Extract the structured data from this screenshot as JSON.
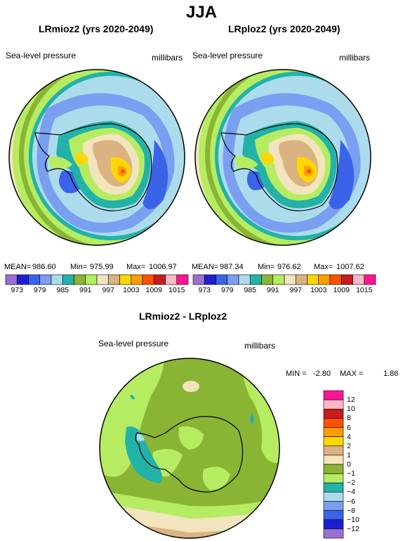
{
  "figure": {
    "title": "JJA",
    "colors": [
      "#9b6fd2",
      "#1f1fd2",
      "#3a63e8",
      "#7a9ef0",
      "#acdcec",
      "#22b2a8",
      "#8ab534",
      "#b6ec62",
      "#f2e4bc",
      "#dbb382",
      "#ffd700",
      "#ff9d00",
      "#ff5000",
      "#c61c1c",
      "#ffb6c6",
      "#ff1493"
    ]
  },
  "chart_data": [
    {
      "type": "heatmap",
      "title": "LRmioz2 (yrs 2020-2049)",
      "variable": "Sea-level pressure",
      "units": "millibars",
      "projection": "south polar stereographic (Antarctica)",
      "stats": {
        "mean_label": "MEAN=",
        "mean": "986.60",
        "min_label": "Min=",
        "min": "975.99",
        "max_label": "Max=",
        "max": "1006.97"
      },
      "colorbar_ticks": [
        "973",
        "979",
        "985",
        "991",
        "997",
        "1003",
        "1009",
        "1015"
      ]
    },
    {
      "type": "heatmap",
      "title": "LRploz2 (yrs 2020-2049)",
      "variable": "Sea-level pressure",
      "units": "millibars",
      "projection": "south polar stereographic (Antarctica)",
      "stats": {
        "mean_label": "MEAN=",
        "mean": "987.34",
        "min_label": "Min=",
        "min": "976.62",
        "max_label": "Max=",
        "max": "1007.62"
      },
      "colorbar_ticks": [
        "973",
        "979",
        "985",
        "991",
        "997",
        "1003",
        "1009",
        "1015"
      ]
    },
    {
      "type": "heatmap",
      "title": "LRmioz2 - LRploz2",
      "variable": "Sea-level pressure",
      "units": "millibars",
      "projection": "south polar stereographic (Antarctica)",
      "stats": {
        "min_label": "MIN =",
        "min": "-2.80",
        "max_label": "MAX =",
        "max": "1.86"
      },
      "colorbar_ticks": [
        "12",
        "10",
        "8",
        "6",
        "4",
        "2",
        "1",
        "0",
        "−1",
        "−2",
        "−4",
        "−6",
        "−8",
        "−10",
        "−12"
      ],
      "colorbar_colors": [
        "#ff1493",
        "#ffb6c6",
        "#c61c1c",
        "#ff5000",
        "#ff9d00",
        "#ffd700",
        "#dbb382",
        "#f2e4bc",
        "#8ab534",
        "#b6ec62",
        "#22b2a8",
        "#acdcec",
        "#7a9ef0",
        "#3a63e8",
        "#1f1fd2",
        "#9b6fd2"
      ]
    }
  ]
}
